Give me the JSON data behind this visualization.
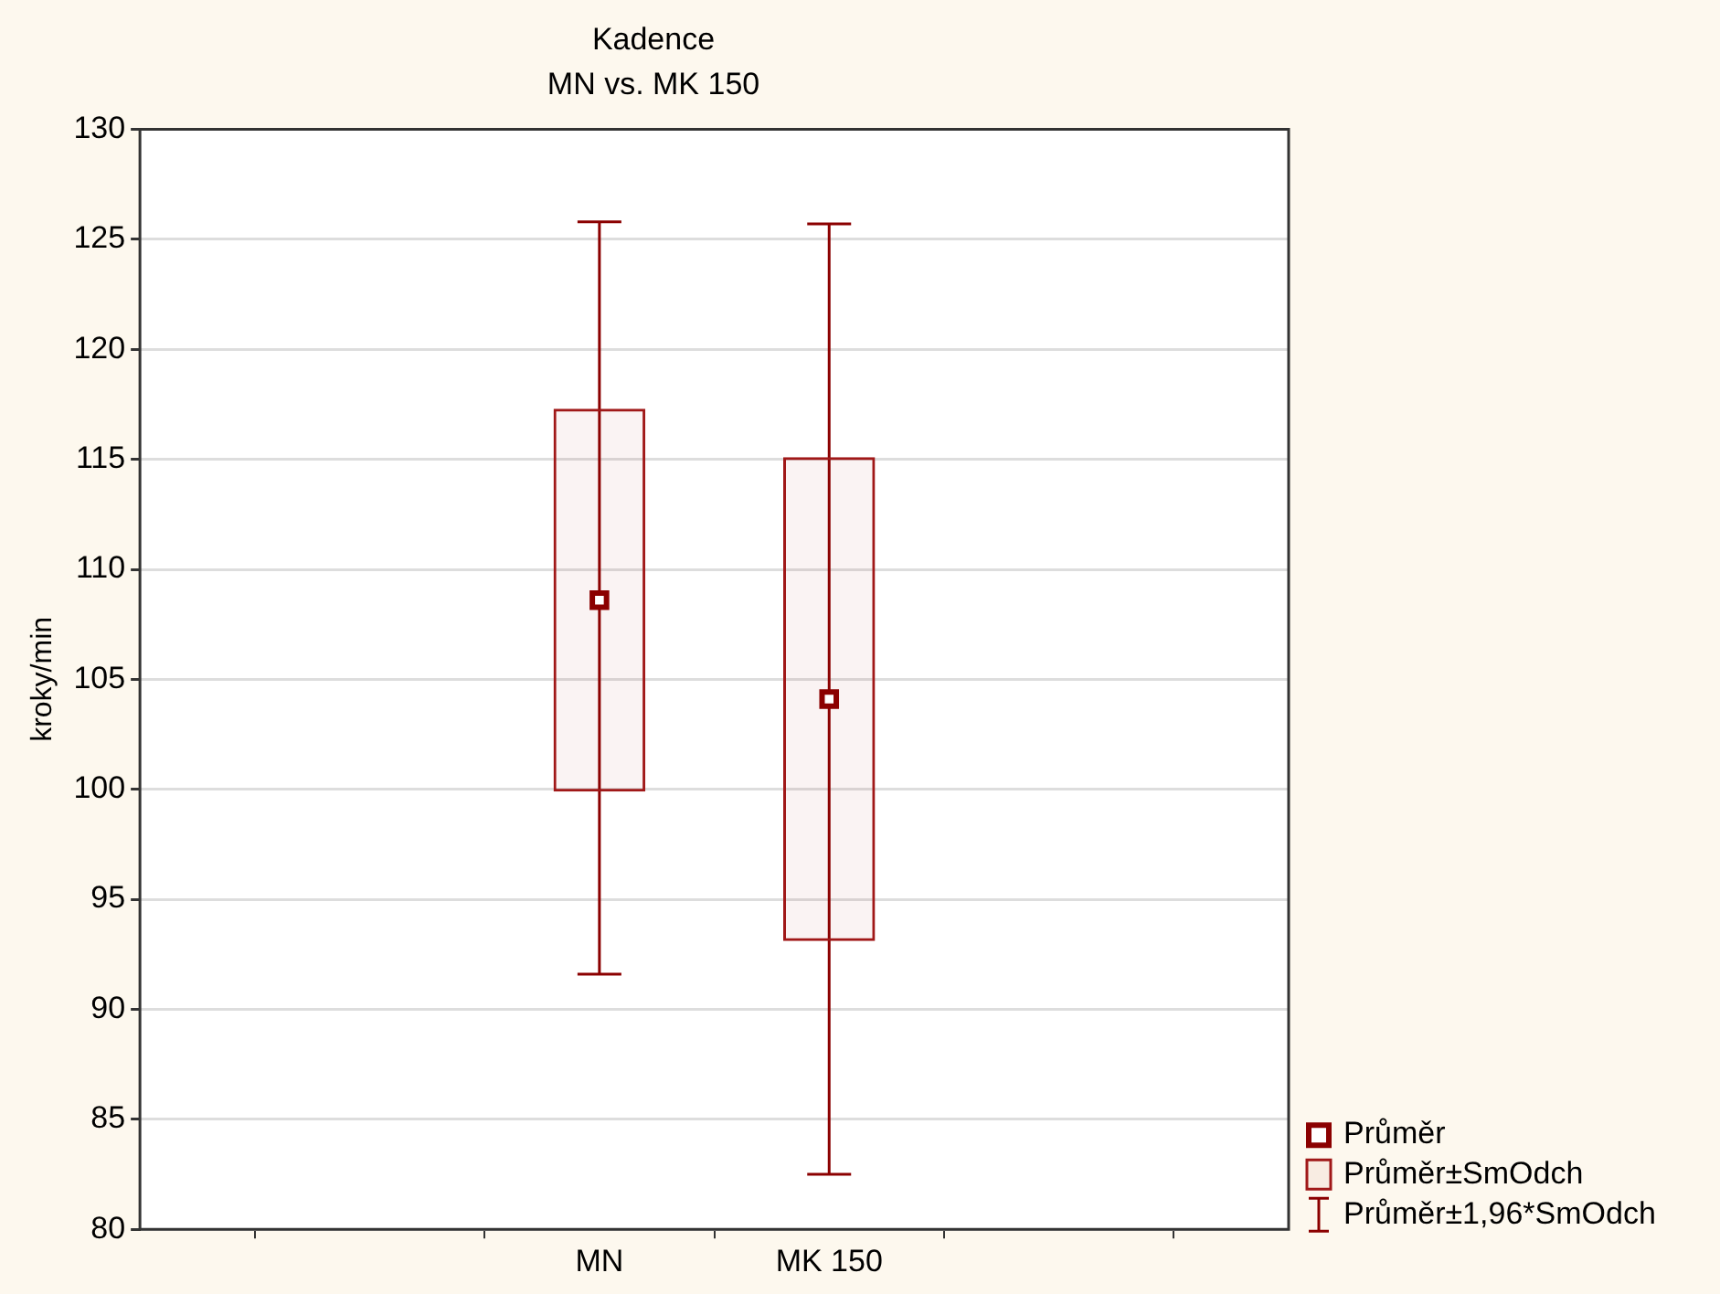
{
  "chart_data": {
    "type": "bar",
    "title": "Kadence",
    "subtitle": "MN vs. MK 150",
    "ylabel": "kroky/min",
    "categories": [
      null,
      null,
      "MN",
      "MK 150",
      null,
      null
    ],
    "ylim": [
      80,
      130
    ],
    "yticks": [
      80,
      85,
      90,
      95,
      100,
      105,
      110,
      115,
      120,
      125,
      130
    ],
    "grid": "y",
    "legend": "bottom right",
    "series": [
      {
        "name": "Průměr",
        "type": "scatter",
        "marker": "square",
        "color": "#8b0000",
        "values": [
          null,
          null,
          108.6,
          104.1,
          null,
          null
        ],
        "errors": [
          null,
          null,
          [
            91.6,
            125.8
          ],
          [
            82.5,
            125.7
          ],
          null,
          null
        ]
      },
      {
        "name": "Průměr±SmOdch",
        "type": "bar",
        "color": "#a01818",
        "base": [
          null,
          null,
          99.9,
          93.1,
          null,
          null
        ],
        "values": [
          null,
          null,
          17.4,
          22.0,
          null,
          null
        ]
      },
      {
        "name": "Průměr±1,96*SmOdch",
        "type": "scatter",
        "marker": "none",
        "color": "#8b0000",
        "values": [
          null,
          null,
          null,
          null,
          null,
          null
        ]
      }
    ]
  }
}
